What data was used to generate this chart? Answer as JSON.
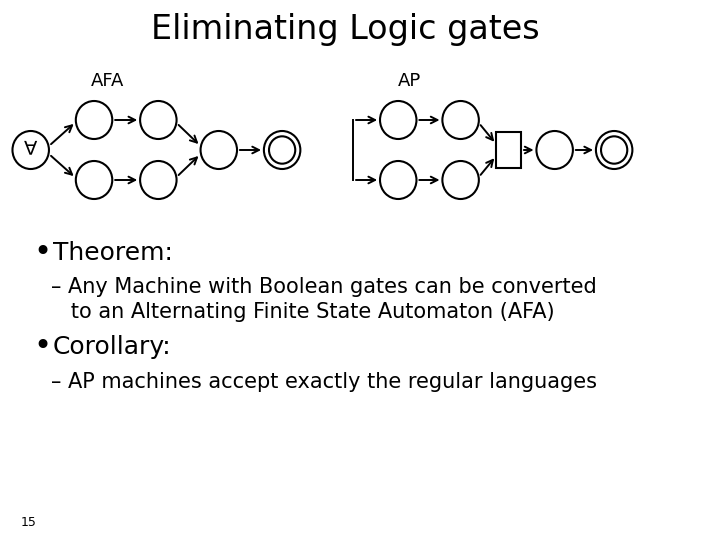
{
  "title": "Eliminating Logic gates",
  "title_fontsize": 24,
  "title_fontweight": "normal",
  "bg_color": "#ffffff",
  "text_color": "#000000",
  "bullet1_header": "Theorem:",
  "bullet1_line1": "– Any Machine with Boolean gates can be converted",
  "bullet1_line2": "   to an Alternating Finite State Automaton (AFA)",
  "bullet2_header": "Corollary:",
  "bullet2_sub": "– AP machines accept exactly the regular languages",
  "footnote": "15",
  "label_afa": "AFA",
  "label_ap": "AP",
  "header_fontsize": 18,
  "sub_fontsize": 15,
  "footnote_fontsize": 9
}
